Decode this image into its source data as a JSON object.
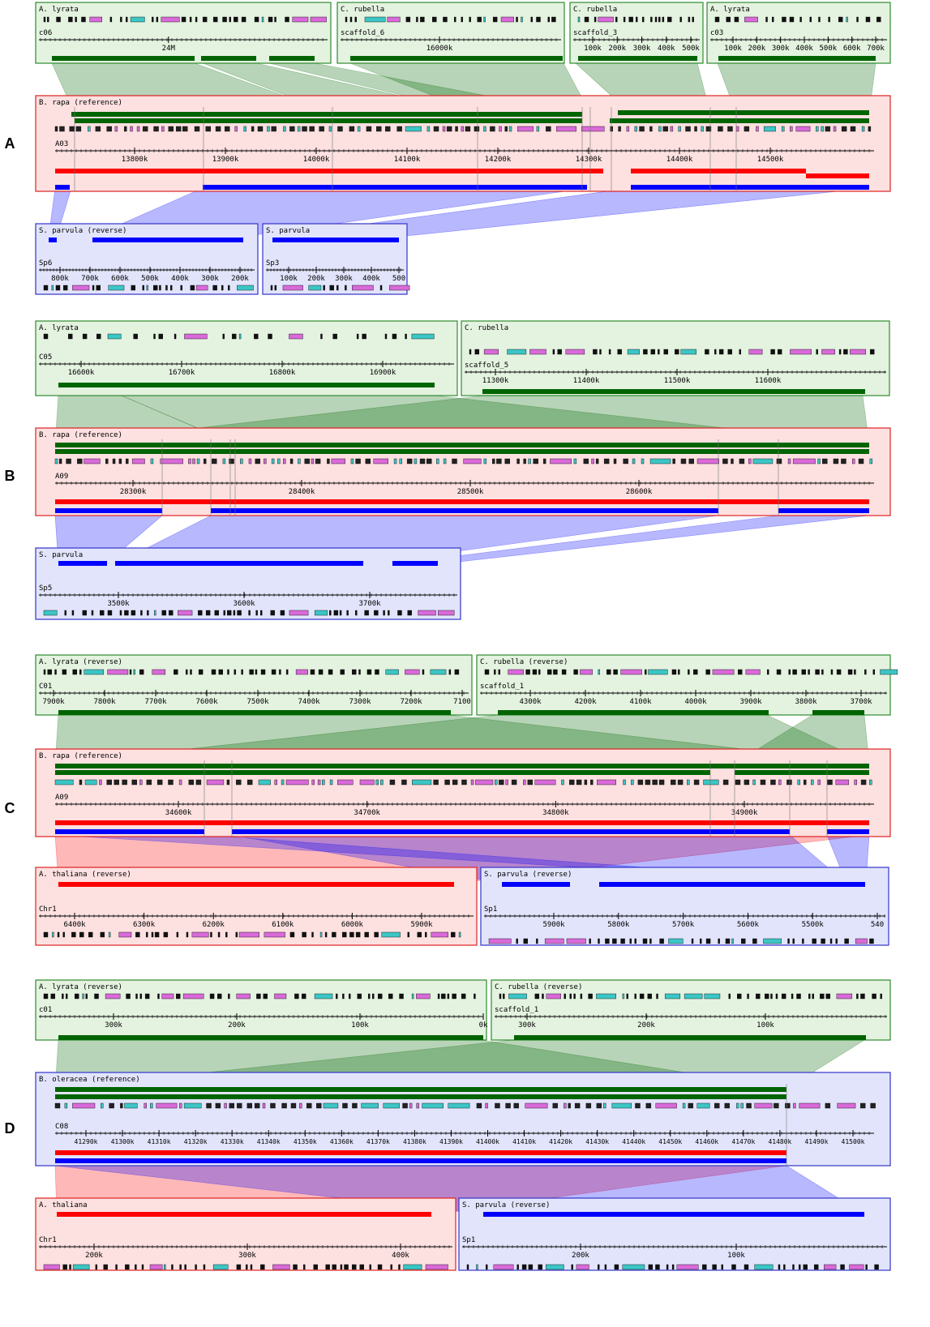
{
  "colors": {
    "green": "#006400",
    "green_fill": "#e4f2e0",
    "green_border": "#2e8b2e",
    "red": "#ff0000",
    "red_fill": "#fde0e0",
    "red_border": "#dd2222",
    "blue": "#0000ff",
    "blue_fill": "#e2e4fb",
    "blue_border": "#3333cc",
    "gene_cyan": "#3cc6c6",
    "gene_pink": "#d96ad9"
  },
  "sections": [
    {
      "label": "A",
      "reference": {
        "species": "B. rapa (reference)",
        "chrom": "A03",
        "ticks": [
          "13800k",
          "13900k",
          "14000k",
          "14100k",
          "14200k",
          "14300k",
          "14400k",
          "14500k"
        ]
      },
      "top_panels": [
        {
          "species": "A. lyrata",
          "chrom": "c06",
          "ticks": [
            "24M"
          ]
        },
        {
          "species": "C. rubella",
          "chrom": "scaffold_6",
          "ticks": [
            "16000k"
          ]
        },
        {
          "species": "C. rubella",
          "chrom": "scaffold_3",
          "ticks": [
            "100k",
            "200k",
            "300k",
            "400k",
            "500k"
          ]
        },
        {
          "species": "A. lyrata",
          "chrom": "c03",
          "ticks": [
            "100k",
            "200k",
            "300k",
            "400k",
            "500k",
            "600k",
            "700k"
          ]
        }
      ],
      "bottom_panels": [
        {
          "species": "S. parvula (reverse)",
          "chrom": "Sp6",
          "ticks": [
            "800k",
            "700k",
            "600k",
            "500k",
            "400k",
            "300k",
            "200k"
          ]
        },
        {
          "species": "S. parvula",
          "chrom": "Sp3",
          "ticks": [
            "100k",
            "200k",
            "300k",
            "400k",
            "500"
          ]
        }
      ]
    },
    {
      "label": "B",
      "reference": {
        "species": "B. rapa (reference)",
        "chrom": "A09",
        "ticks": [
          "28300k",
          "28400k",
          "28500k",
          "28600k"
        ]
      },
      "top_panels": [
        {
          "species": "A. lyrata",
          "chrom": "C05",
          "ticks": [
            "16600k",
            "16700k",
            "16800k",
            "16900k"
          ]
        },
        {
          "species": "C. rubella",
          "chrom": "scaffold_5",
          "ticks": [
            "11300k",
            "11400k",
            "11500k",
            "11600k"
          ]
        }
      ],
      "bottom_panels": [
        {
          "species": "S. parvula",
          "chrom": "Sp5",
          "ticks": [
            "3500k",
            "3600k",
            "3700k"
          ]
        }
      ]
    },
    {
      "label": "C",
      "reference": {
        "species": "B. rapa (reference)",
        "chrom": "A09",
        "ticks": [
          "34600k",
          "34700k",
          "34800k",
          "34900k"
        ]
      },
      "top_panels": [
        {
          "species": "A. lyrata (reverse)",
          "chrom": "C01",
          "ticks": [
            "7900k",
            "7800k",
            "7700k",
            "7600k",
            "7500k",
            "7400k",
            "7300k",
            "7200k",
            "7100"
          ]
        },
        {
          "species": "C. rubella (reverse)",
          "chrom": "scaffold_1",
          "ticks": [
            "4300k",
            "4200k",
            "4100k",
            "4000k",
            "3900k",
            "3800k",
            "3700k"
          ]
        }
      ],
      "bottom_panels": [
        {
          "species": "A. thaliana (reverse)",
          "chrom": "Chr1",
          "ticks": [
            "6400k",
            "6300k",
            "6200k",
            "6100k",
            "6000k",
            "5900k"
          ]
        },
        {
          "species": "S. parvula (reverse)",
          "chrom": "Sp1",
          "ticks": [
            "5900k",
            "5800k",
            "5700k",
            "5600k",
            "5500k",
            "540"
          ]
        }
      ]
    },
    {
      "label": "D",
      "reference": {
        "species": "B. oleracea (reference)",
        "chrom": "C08",
        "ticks": [
          "41290k",
          "41300k",
          "41310k",
          "41320k",
          "41330k",
          "41340k",
          "41350k",
          "41360k",
          "41370k",
          "41380k",
          "41390k",
          "41400k",
          "41410k",
          "41420k",
          "41430k",
          "41440k",
          "41450k",
          "41460k",
          "41470k",
          "41480k",
          "41490k",
          "41500k"
        ]
      },
      "top_panels": [
        {
          "species": "A. lyrata (reverse)",
          "chrom": "c01",
          "ticks": [
            "300k",
            "200k",
            "100k",
            "0k"
          ]
        },
        {
          "species": "C. rubella (reverse)",
          "chrom": "scaffold_1",
          "ticks": [
            "300k",
            "200k",
            "100k"
          ]
        }
      ],
      "bottom_panels": [
        {
          "species": "A. thaliana",
          "chrom": "Chr1",
          "ticks": [
            "200k",
            "300k",
            "400k"
          ]
        },
        {
          "species": "S. parvula (reverse)",
          "chrom": "Sp1",
          "ticks": [
            "200k",
            "100k"
          ]
        }
      ]
    }
  ]
}
